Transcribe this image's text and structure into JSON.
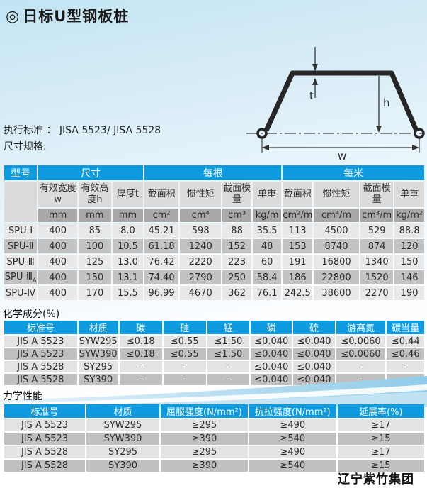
{
  "page": {
    "title_bullet": "◎",
    "title": "日标U型钢板桩",
    "standard_line": "执行标准 ： JISA 5523/ JISA 5528",
    "spec_line": "尺寸规格:",
    "footer": "辽宁紫竹集团"
  },
  "colors": {
    "header_blue": "#0d9ade",
    "row_light": "#e8e8e8",
    "row_dark": "#c2c2c2",
    "subheader_gray": "#dbdbdb",
    "unit_gray": "#a8a8a8"
  },
  "diagram": {
    "t_label": "t",
    "h_label": "h",
    "w_label": "w"
  },
  "spec_table": {
    "head": [
      {
        "cls": "group",
        "cells": [
          {
            "t": "型号"
          },
          {
            "t": "尺寸",
            "cs": 3
          },
          {
            "t": "每根",
            "cs": 4
          },
          {
            "t": "每米",
            "cs": 4
          }
        ]
      },
      {
        "cls": "sub",
        "cells": [
          {
            "t": "",
            "rs": 2
          },
          "有效宽度w",
          "有效高度h",
          "厚度t",
          "截面积",
          "惯性矩",
          "截面模量",
          "单重",
          "截面积",
          "惯性矩",
          "截面模量",
          "单重"
        ]
      },
      {
        "cls": "unit",
        "cells": [
          "mm",
          "mm",
          "mm",
          "cm²",
          "cm⁴",
          "cm³",
          "kg/m",
          "cm²/m",
          "cm⁴/m",
          "cm³/m",
          "kg/m²"
        ]
      }
    ],
    "body": [
      [
        "SPU-Ⅰ",
        "400",
        "85",
        "8.0",
        "45.21",
        "598",
        "88",
        "35.5",
        "113",
        "4500",
        "529",
        "88.8"
      ],
      [
        "SPU-Ⅱ",
        "400",
        "100",
        "10.5",
        "61.18",
        "1240",
        "152",
        "48",
        "153",
        "8740",
        "874",
        "120"
      ],
      [
        "SPU-Ⅲ",
        "400",
        "125",
        "13.0",
        "76.42",
        "2220",
        "223",
        "60",
        "191",
        "16800",
        "1340",
        "150"
      ],
      [
        {
          "t": "SPU-Ⅲ",
          "sub": "A"
        },
        "400",
        "150",
        "13.1",
        "74.40",
        "2790",
        "250",
        "58.4",
        "186",
        "22800",
        "1520",
        "146"
      ],
      [
        "SPU-Ⅳ",
        "400",
        "170",
        "15.5",
        "96.99",
        "4670",
        "362",
        "76.1",
        "242.5",
        "38600",
        "2270",
        "190"
      ]
    ]
  },
  "chem_table": {
    "section_label": "化学成分(%)",
    "head": [
      {
        "cls": "hdr",
        "cells": [
          "标准号",
          "材质",
          "碳",
          "硅",
          "锰",
          "磷",
          "硫",
          "游离氮",
          "碳当量"
        ]
      }
    ],
    "body": [
      [
        "JIS A 5523",
        "SYW295",
        "≤0.18",
        "≤0.55",
        "≤1.50",
        "≤0.040",
        "≤0.040",
        "≤0.0060",
        "≤0.44"
      ],
      [
        "JIS A 5523",
        "SYW390",
        "≤0.18",
        "≤0.55",
        "≤1.50",
        "≤0.040",
        "≤0.040",
        "≤0.0060",
        "≤0.46"
      ],
      [
        "JIS A 5528",
        "SY295",
        "–",
        "–",
        "–",
        "≤0.040",
        "≤0.040",
        "–",
        "–"
      ],
      [
        "JIS A 5528",
        "SY390",
        "–",
        "–",
        "–",
        "≤0.040",
        "≤0.040",
        "–",
        "–"
      ]
    ]
  },
  "mech_table": {
    "section_label": "力学性能",
    "head": [
      {
        "cls": "hdr",
        "cells": [
          "标准号",
          "材质",
          "屈服强度(N/mm²)",
          "抗拉强度(N/mm²)",
          "延展率(%)"
        ]
      }
    ],
    "body": [
      [
        "JIS A 5523",
        "SYW295",
        "≥295",
        "≥490",
        "≥17"
      ],
      [
        "JIS A 5523",
        "SYW390",
        "≥390",
        "≥540",
        "≥15"
      ],
      [
        "JIS A 5528",
        "SY295",
        "≥295",
        "≥490",
        "≥17"
      ],
      [
        "JIS A 5528",
        "SY390",
        "≥390",
        "≥540",
        "≥15"
      ]
    ]
  }
}
